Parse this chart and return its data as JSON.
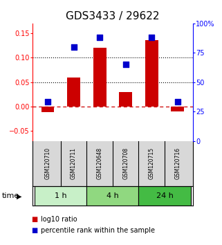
{
  "title": "GDS3433 / 29622",
  "samples": [
    "GSM120710",
    "GSM120711",
    "GSM120648",
    "GSM120708",
    "GSM120715",
    "GSM120716"
  ],
  "log10_ratio": [
    -0.012,
    0.06,
    0.12,
    0.03,
    0.135,
    -0.01
  ],
  "percentile_rank": [
    33,
    80,
    88,
    65,
    88,
    33
  ],
  "groups": [
    {
      "label": "1 h",
      "indices": [
        0,
        1
      ],
      "color": "#c8f0c8"
    },
    {
      "label": "4 h",
      "indices": [
        2,
        3
      ],
      "color": "#90d880"
    },
    {
      "label": "24 h",
      "indices": [
        4,
        5
      ],
      "color": "#44bb44"
    }
  ],
  "bar_color": "#cc0000",
  "dot_color": "#0000cc",
  "ylim_left": [
    -0.07,
    0.17
  ],
  "ylim_right": [
    0,
    100
  ],
  "yticks_left": [
    -0.05,
    0.0,
    0.05,
    0.1,
    0.15
  ],
  "yticks_right": [
    0,
    25,
    50,
    75,
    100
  ],
  "hline_dotted": [
    0.05,
    0.1
  ],
  "title_fontsize": 11,
  "tick_fontsize": 7,
  "sample_fontsize": 5.5,
  "label_fontsize": 8,
  "legend_fontsize": 7,
  "bar_width": 0.5,
  "dot_size": 28
}
